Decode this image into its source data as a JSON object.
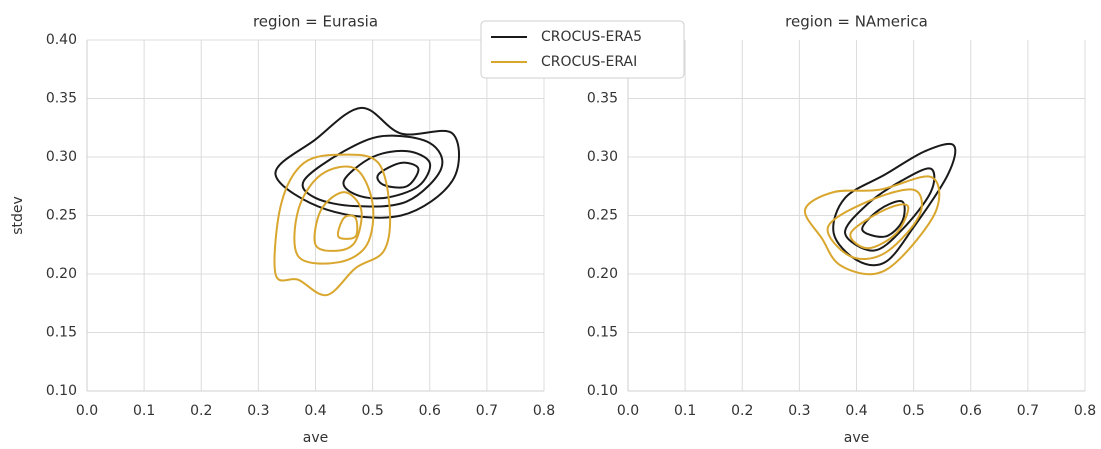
{
  "chart_data": [
    {
      "type": "contour",
      "title": "region = Eurasia",
      "xlabel": "ave",
      "ylabel": "stdev",
      "xlim": [
        0,
        0.8
      ],
      "ylim": [
        0.1,
        0.4
      ],
      "grid": true,
      "legend": "upper center",
      "xticks": [
        {
          "value": 0,
          "label": "0.0"
        },
        0.1,
        0.2,
        0.3,
        0.4,
        0.5,
        0.6,
        0.7,
        0.8
      ],
      "yticks": [
        {
          "value": 0.1,
          "label": "0.10"
        },
        0.15,
        {
          "value": 0.2,
          "label": "0.20"
        },
        0.25,
        {
          "value": 0.3,
          "label": "0.30"
        },
        0.35,
        {
          "value": 0.4,
          "label": "0.40"
        }
      ],
      "series": [
        {
          "name": "CROCUS-ERA5",
          "color": "#1a1a1a",
          "contours": [
            {
              "x": [
                0.33,
                0.4,
                0.48,
                0.55,
                0.64,
                0.64,
                0.55,
                0.42
              ],
              "y": [
                0.285,
                0.315,
                0.342,
                0.32,
                0.32,
                0.28,
                0.25,
                0.255
              ]
            },
            {
              "x": [
                0.38,
                0.45,
                0.52,
                0.6,
                0.62,
                0.56,
                0.47,
                0.4
              ],
              "y": [
                0.28,
                0.305,
                0.318,
                0.312,
                0.29,
                0.262,
                0.258,
                0.265
              ]
            },
            {
              "x": [
                0.45,
                0.5,
                0.56,
                0.6,
                0.58,
                0.52,
                0.47
              ],
              "y": [
                0.28,
                0.3,
                0.305,
                0.295,
                0.275,
                0.265,
                0.268
              ]
            },
            {
              "x": [
                0.51,
                0.55,
                0.58,
                0.56,
                0.52
              ],
              "y": [
                0.285,
                0.295,
                0.29,
                0.275,
                0.276
              ]
            }
          ]
        },
        {
          "name": "CROCUS-ERAI",
          "color": "#d9a62e",
          "contours": [
            {
              "x": [
                0.33,
                0.34,
                0.38,
                0.45,
                0.51,
                0.53,
                0.52,
                0.47,
                0.42,
                0.37
              ],
              "y": [
                0.2,
                0.26,
                0.295,
                0.302,
                0.295,
                0.255,
                0.22,
                0.205,
                0.182,
                0.195
              ]
            },
            {
              "x": [
                0.37,
                0.37,
                0.41,
                0.47,
                0.5,
                0.49,
                0.44
              ],
              "y": [
                0.215,
                0.255,
                0.285,
                0.29,
                0.26,
                0.225,
                0.21
              ]
            },
            {
              "x": [
                0.4,
                0.41,
                0.45,
                0.48,
                0.47,
                0.44
              ],
              "y": [
                0.225,
                0.255,
                0.27,
                0.255,
                0.228,
                0.22
              ]
            },
            {
              "x": [
                0.44,
                0.45,
                0.47,
                0.47
              ],
              "y": [
                0.232,
                0.248,
                0.248,
                0.232
              ]
            }
          ]
        }
      ]
    },
    {
      "type": "contour",
      "title": "region = NAmerica",
      "xlabel": "ave",
      "xlim": [
        0,
        0.8
      ],
      "ylim": [
        0.1,
        0.4
      ],
      "grid": true,
      "xticks": [
        {
          "value": 0,
          "label": "0.0"
        },
        0.1,
        0.2,
        0.3,
        0.4,
        0.5,
        0.6,
        0.7,
        0.8
      ],
      "yticks": [
        {
          "value": 0.1,
          "label": "0.10"
        },
        0.15,
        {
          "value": 0.2,
          "label": "0.20"
        },
        0.25,
        {
          "value": 0.3,
          "label": "0.30"
        },
        0.35
      ],
      "series": [
        {
          "name": "CROCUS-ERA5",
          "color": "#1a1a1a",
          "contours": [
            {
              "x": [
                0.36,
                0.38,
                0.45,
                0.52,
                0.57,
                0.56,
                0.5,
                0.45,
                0.4
              ],
              "y": [
                0.235,
                0.265,
                0.285,
                0.305,
                0.31,
                0.285,
                0.24,
                0.21,
                0.212
              ]
            },
            {
              "x": [
                0.38,
                0.42,
                0.48,
                0.53,
                0.53,
                0.48,
                0.43
              ],
              "y": [
                0.235,
                0.26,
                0.28,
                0.29,
                0.27,
                0.238,
                0.22
              ]
            },
            {
              "x": [
                0.41,
                0.44,
                0.48,
                0.48,
                0.45
              ],
              "y": [
                0.238,
                0.255,
                0.262,
                0.245,
                0.232
              ]
            }
          ]
        },
        {
          "name": "CROCUS-ERAI",
          "color": "#d9a62e",
          "contours": [
            {
              "x": [
                0.31,
                0.36,
                0.44,
                0.53,
                0.54,
                0.48,
                0.43,
                0.37,
                0.34
              ],
              "y": [
                0.255,
                0.27,
                0.272,
                0.283,
                0.255,
                0.215,
                0.2,
                0.208,
                0.23
              ]
            },
            {
              "x": [
                0.35,
                0.42,
                0.5,
                0.51,
                0.45,
                0.39
              ],
              "y": [
                0.24,
                0.262,
                0.272,
                0.25,
                0.218,
                0.215
              ]
            },
            {
              "x": [
                0.39,
                0.45,
                0.49,
                0.47,
                0.42
              ],
              "y": [
                0.235,
                0.255,
                0.258,
                0.235,
                0.222
              ]
            }
          ]
        }
      ]
    }
  ]
}
